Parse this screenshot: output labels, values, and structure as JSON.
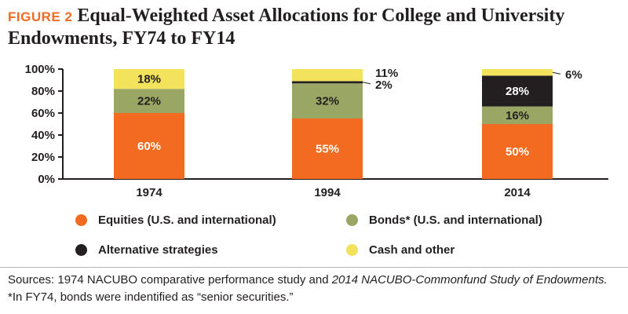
{
  "header": {
    "figure_label": "FIGURE 2",
    "title": "Equal-Weighted Asset Allocations for College and University Endowments, FY74 to FY14"
  },
  "colors": {
    "equities": "#f26b21",
    "bonds": "#9aa764",
    "alternative": "#231f20",
    "cash": "#f2e25c",
    "axis": "#231f20",
    "figure_label": "#f26b21"
  },
  "chart_data": {
    "type": "bar",
    "stacked": true,
    "categories": [
      "1974",
      "1994",
      "2014"
    ],
    "series": [
      {
        "name": "Equities (U.S. and international)",
        "color": "#f26b21",
        "values": [
          60,
          55,
          50
        ],
        "labels": [
          "60%",
          "55%",
          "50%"
        ]
      },
      {
        "name": "Bonds* (U.S. and international)",
        "color": "#9aa764",
        "values": [
          22,
          32,
          16
        ],
        "labels": [
          "22%",
          "32%",
          "16%"
        ]
      },
      {
        "name": "Alternative strategies",
        "color": "#231f20",
        "values": [
          0,
          2,
          28
        ],
        "labels": [
          "",
          "2%",
          "28%"
        ]
      },
      {
        "name": "Cash and other",
        "color": "#f2e25c",
        "values": [
          18,
          11,
          6
        ],
        "labels": [
          "18%",
          "11%",
          "6%"
        ]
      }
    ],
    "yticks": [
      "0%",
      "20%",
      "40%",
      "60%",
      "80%",
      "100%"
    ],
    "ylim": [
      0,
      100
    ],
    "xlabel": "",
    "ylabel": "",
    "grid": false,
    "legend_position": "bottom"
  },
  "legend": [
    {
      "label": "Equities (U.S. and international)",
      "color": "#f26b21"
    },
    {
      "label": "Bonds* (U.S. and international)",
      "color": "#9aa764"
    },
    {
      "label": "Alternative strategies",
      "color": "#231f20"
    },
    {
      "label": "Cash and other",
      "color": "#f2e25c"
    }
  ],
  "sources": {
    "part1": "Sources: 1974 NACUBO comparative performance study and ",
    "italic": "2014 NACUBO-Commonfund Study of Endowments.",
    "part2": " *In FY74, bonds were indentified as “senior securities.”"
  }
}
